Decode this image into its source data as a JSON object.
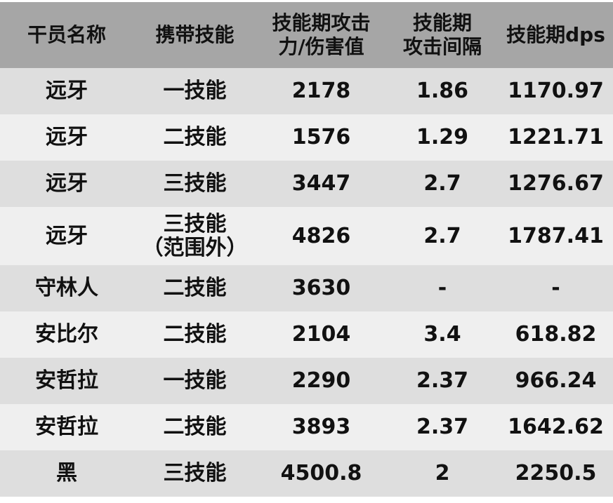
{
  "table": {
    "headers": [
      [
        "干员名称"
      ],
      [
        "携带技能"
      ],
      [
        "技能期攻击",
        "力/伤害值"
      ],
      [
        "技能期",
        "攻击间隔"
      ],
      [
        "技能期dps"
      ]
    ],
    "rows": [
      {
        "name": "远牙",
        "skill": [
          "一技能"
        ],
        "atk": "2178",
        "interval": "1.86",
        "dps": "1170.97"
      },
      {
        "name": "远牙",
        "skill": [
          "二技能"
        ],
        "atk": "1576",
        "interval": "1.29",
        "dps": "1221.71"
      },
      {
        "name": "远牙",
        "skill": [
          "三技能"
        ],
        "atk": "3447",
        "interval": "2.7",
        "dps": "1276.67"
      },
      {
        "name": "远牙",
        "skill": [
          "三技能",
          "（范围外）"
        ],
        "atk": "4826",
        "interval": "2.7",
        "dps": "1787.41"
      },
      {
        "name": "守林人",
        "skill": [
          "二技能"
        ],
        "atk": "3630",
        "interval": "-",
        "dps": "-"
      },
      {
        "name": "安比尔",
        "skill": [
          "二技能"
        ],
        "atk": "2104",
        "interval": "3.4",
        "dps": "618.82"
      },
      {
        "name": "安哲拉",
        "skill": [
          "一技能"
        ],
        "atk": "2290",
        "interval": "2.37",
        "dps": "966.24"
      },
      {
        "name": "安哲拉",
        "skill": [
          "二技能"
        ],
        "atk": "3893",
        "interval": "2.37",
        "dps": "1642.62"
      },
      {
        "name": "黑",
        "skill": [
          "三技能"
        ],
        "atk": "4500.8",
        "interval": "2",
        "dps": "2250.5"
      }
    ]
  },
  "colors": {
    "header_bg": "#a6a6a6",
    "row_odd": "#dedede",
    "row_even": "#efefef"
  }
}
